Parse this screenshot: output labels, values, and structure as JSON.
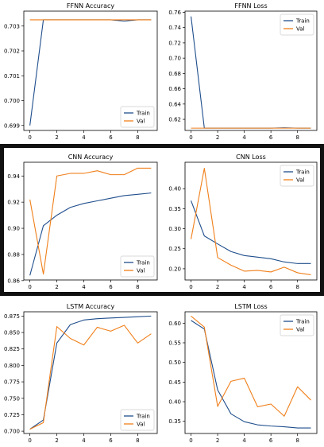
{
  "colors": {
    "train": "#1f4e8c",
    "val": "#f07f1a",
    "band": "#111111"
  },
  "chart_data": [
    {
      "type": "line",
      "title": "FFNN Accuracy",
      "xlabel": "",
      "ylabel": "",
      "x": [
        0,
        1,
        2,
        3,
        4,
        5,
        6,
        7,
        8,
        9
      ],
      "xticks": [
        0,
        2,
        4,
        6,
        8
      ],
      "xlim": [
        -0.45,
        9.45
      ],
      "yticks": [
        0.699,
        0.7,
        0.701,
        0.702,
        0.703
      ],
      "ylim": [
        0.6988,
        0.7036
      ],
      "series": [
        {
          "name": "Train",
          "values": [
            0.699,
            0.70325,
            0.70325,
            0.70325,
            0.70325,
            0.70325,
            0.70325,
            0.7032,
            0.70325,
            0.70325
          ]
        },
        {
          "name": "Val",
          "values": [
            0.70325,
            0.70325,
            0.70325,
            0.70325,
            0.70325,
            0.70325,
            0.70325,
            0.70325,
            0.70325,
            0.70325
          ]
        }
      ],
      "legend": "lower-right"
    },
    {
      "type": "line",
      "title": "FFNN Loss",
      "xlabel": "",
      "ylabel": "",
      "x": [
        0,
        1,
        2,
        3,
        4,
        5,
        6,
        7,
        8,
        9
      ],
      "xticks": [
        0,
        2,
        4,
        6,
        8
      ],
      "xlim": [
        -0.45,
        9.45
      ],
      "yticks": [
        0.62,
        0.64,
        0.66,
        0.68,
        0.7,
        0.72,
        0.74,
        0.76
      ],
      "ylim": [
        0.6055,
        0.7615
      ],
      "series": [
        {
          "name": "Train",
          "values": [
            0.7545,
            0.6085,
            0.6085,
            0.6085,
            0.6085,
            0.6085,
            0.6085,
            0.609,
            0.6085,
            0.6085
          ]
        },
        {
          "name": "Val",
          "values": [
            0.6085,
            0.6085,
            0.6085,
            0.6085,
            0.6085,
            0.6085,
            0.6085,
            0.6085,
            0.6085,
            0.6085
          ]
        }
      ],
      "legend": "upper-right"
    },
    {
      "type": "line",
      "title": "CNN Accuracy",
      "xlabel": "",
      "ylabel": "",
      "x": [
        0,
        1,
        2,
        3,
        4,
        5,
        6,
        7,
        8,
        9
      ],
      "xticks": [
        0,
        2,
        4,
        6,
        8
      ],
      "xlim": [
        -0.45,
        9.45
      ],
      "yticks": [
        0.86,
        0.88,
        0.9,
        0.92,
        0.94
      ],
      "ylim": [
        0.8605,
        0.9505
      ],
      "series": [
        {
          "name": "Train",
          "values": [
            0.864,
            0.902,
            0.91,
            0.916,
            0.919,
            0.921,
            0.923,
            0.925,
            0.926,
            0.927
          ]
        },
        {
          "name": "Val",
          "values": [
            0.922,
            0.865,
            0.94,
            0.942,
            0.942,
            0.944,
            0.941,
            0.941,
            0.946,
            0.946
          ]
        }
      ],
      "legend": "lower-right"
    },
    {
      "type": "line",
      "title": "CNN Loss",
      "xlabel": "",
      "ylabel": "",
      "x": [
        0,
        1,
        2,
        3,
        4,
        5,
        6,
        7,
        8,
        9
      ],
      "xticks": [
        0,
        2,
        4,
        6,
        8
      ],
      "xlim": [
        -0.45,
        9.45
      ],
      "yticks": [
        0.2,
        0.25,
        0.3,
        0.35,
        0.4
      ],
      "ylim": [
        0.172,
        0.466
      ],
      "series": [
        {
          "name": "Train",
          "values": [
            0.37,
            0.282,
            0.262,
            0.243,
            0.233,
            0.229,
            0.225,
            0.217,
            0.213,
            0.213
          ]
        },
        {
          "name": "Val",
          "values": [
            0.274,
            0.451,
            0.228,
            0.209,
            0.194,
            0.196,
            0.192,
            0.204,
            0.19,
            0.185
          ]
        }
      ],
      "legend": "upper-right"
    },
    {
      "type": "line",
      "title": "LSTM Accuracy",
      "xlabel": "",
      "ylabel": "",
      "x": [
        0,
        1,
        2,
        3,
        4,
        5,
        6,
        7,
        8,
        9
      ],
      "xticks": [
        0,
        2,
        4,
        6,
        8
      ],
      "xlim": [
        -0.45,
        9.45
      ],
      "yticks": [
        0.7,
        0.725,
        0.75,
        0.775,
        0.8,
        0.825,
        0.85,
        0.875
      ],
      "ylim": [
        0.6965,
        0.8815
      ],
      "series": [
        {
          "name": "Train",
          "values": [
            0.703,
            0.717,
            0.834,
            0.862,
            0.869,
            0.871,
            0.872,
            0.873,
            0.874,
            0.875
          ]
        },
        {
          "name": "Val",
          "values": [
            0.703,
            0.713,
            0.859,
            0.841,
            0.831,
            0.858,
            0.852,
            0.861,
            0.834,
            0.848
          ]
        }
      ],
      "legend": "lower-right"
    },
    {
      "type": "line",
      "title": "LSTM Loss",
      "xlabel": "",
      "ylabel": "",
      "x": [
        0,
        1,
        2,
        3,
        4,
        5,
        6,
        7,
        8,
        9
      ],
      "xticks": [
        0,
        2,
        4,
        6,
        8
      ],
      "xlim": [
        -0.45,
        9.45
      ],
      "yticks": [
        0.35,
        0.4,
        0.45,
        0.5,
        0.55,
        0.6
      ],
      "ylim": [
        0.319,
        0.629
      ],
      "series": [
        {
          "name": "Train",
          "values": [
            0.607,
            0.585,
            0.43,
            0.369,
            0.349,
            0.341,
            0.338,
            0.336,
            0.333,
            0.333
          ]
        },
        {
          "name": "Val",
          "values": [
            0.618,
            0.59,
            0.388,
            0.452,
            0.46,
            0.387,
            0.394,
            0.363,
            0.438,
            0.404
          ]
        }
      ],
      "legend": "upper-right"
    }
  ]
}
